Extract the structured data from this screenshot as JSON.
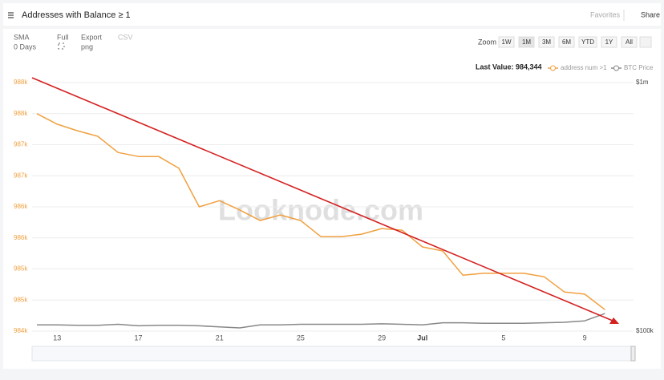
{
  "header": {
    "title": "Addresses with Balance ≥ 1",
    "favorites": "Favorites",
    "share": "Share"
  },
  "toolbar": {
    "sma": "SMA",
    "sma_value": "0 Days",
    "full": "Full",
    "export": "Export",
    "export_value": "png",
    "csv": "CSV",
    "zoom": "Zoom",
    "zoom_buttons": [
      "1W",
      "1M",
      "3M",
      "6M",
      "YTD",
      "1Y",
      "All"
    ]
  },
  "chart_data": {
    "type": "line",
    "watermark": "Looknode.com",
    "last_value_label": "Last Value: 984,344",
    "categories": [
      null,
      "13",
      null,
      null,
      null,
      "17",
      null,
      null,
      null,
      "21",
      null,
      null,
      null,
      "25",
      null,
      null,
      null,
      "29",
      null,
      "Jul",
      null,
      null,
      null,
      "5",
      null,
      null,
      null,
      "9",
      null
    ],
    "series": [
      {
        "name": "address num >1",
        "color": "#f0a040",
        "axis": "y",
        "values": [
          987500,
          987330,
          987225,
          987135,
          986875,
          986810,
          986810,
          986620,
          986000,
          986100,
          985950,
          985780,
          985870,
          985780,
          985520,
          985520,
          985560,
          985650,
          985625,
          985355,
          985290,
          984900,
          984930,
          984930,
          984930,
          984875,
          984630,
          984595,
          984344
        ]
      },
      {
        "name": "BTC Price",
        "color": "#888888",
        "axis": "y2",
        "values": [
          106000,
          106000,
          105500,
          105500,
          106500,
          105000,
          105500,
          105500,
          105000,
          104000,
          103000,
          106000,
          106000,
          106500,
          106500,
          106500,
          106500,
          107000,
          106500,
          106000,
          108000,
          108000,
          107500,
          107500,
          107500,
          108000,
          108500,
          110000,
          117700
        ]
      }
    ],
    "ylim": [
      984000,
      988000
    ],
    "yticks": [
      {
        "value": 984000,
        "label": "984k"
      },
      {
        "value": 984500,
        "label": "985k"
      },
      {
        "value": 985000,
        "label": "985k"
      },
      {
        "value": 985500,
        "label": "986k"
      },
      {
        "value": 986000,
        "label": "986k"
      },
      {
        "value": 986500,
        "label": "987k"
      },
      {
        "value": 987000,
        "label": "987k"
      },
      {
        "value": 987500,
        "label": "988k"
      },
      {
        "value": 988000,
        "label": "988k"
      }
    ],
    "y2lim": [
      100000,
      1000000
    ],
    "y2scale": "log",
    "y2ticks": [
      {
        "value": 100000,
        "label": "$100k"
      },
      {
        "value": 1000000,
        "label": "$1m"
      }
    ],
    "grid": true,
    "legend": "top-right"
  }
}
